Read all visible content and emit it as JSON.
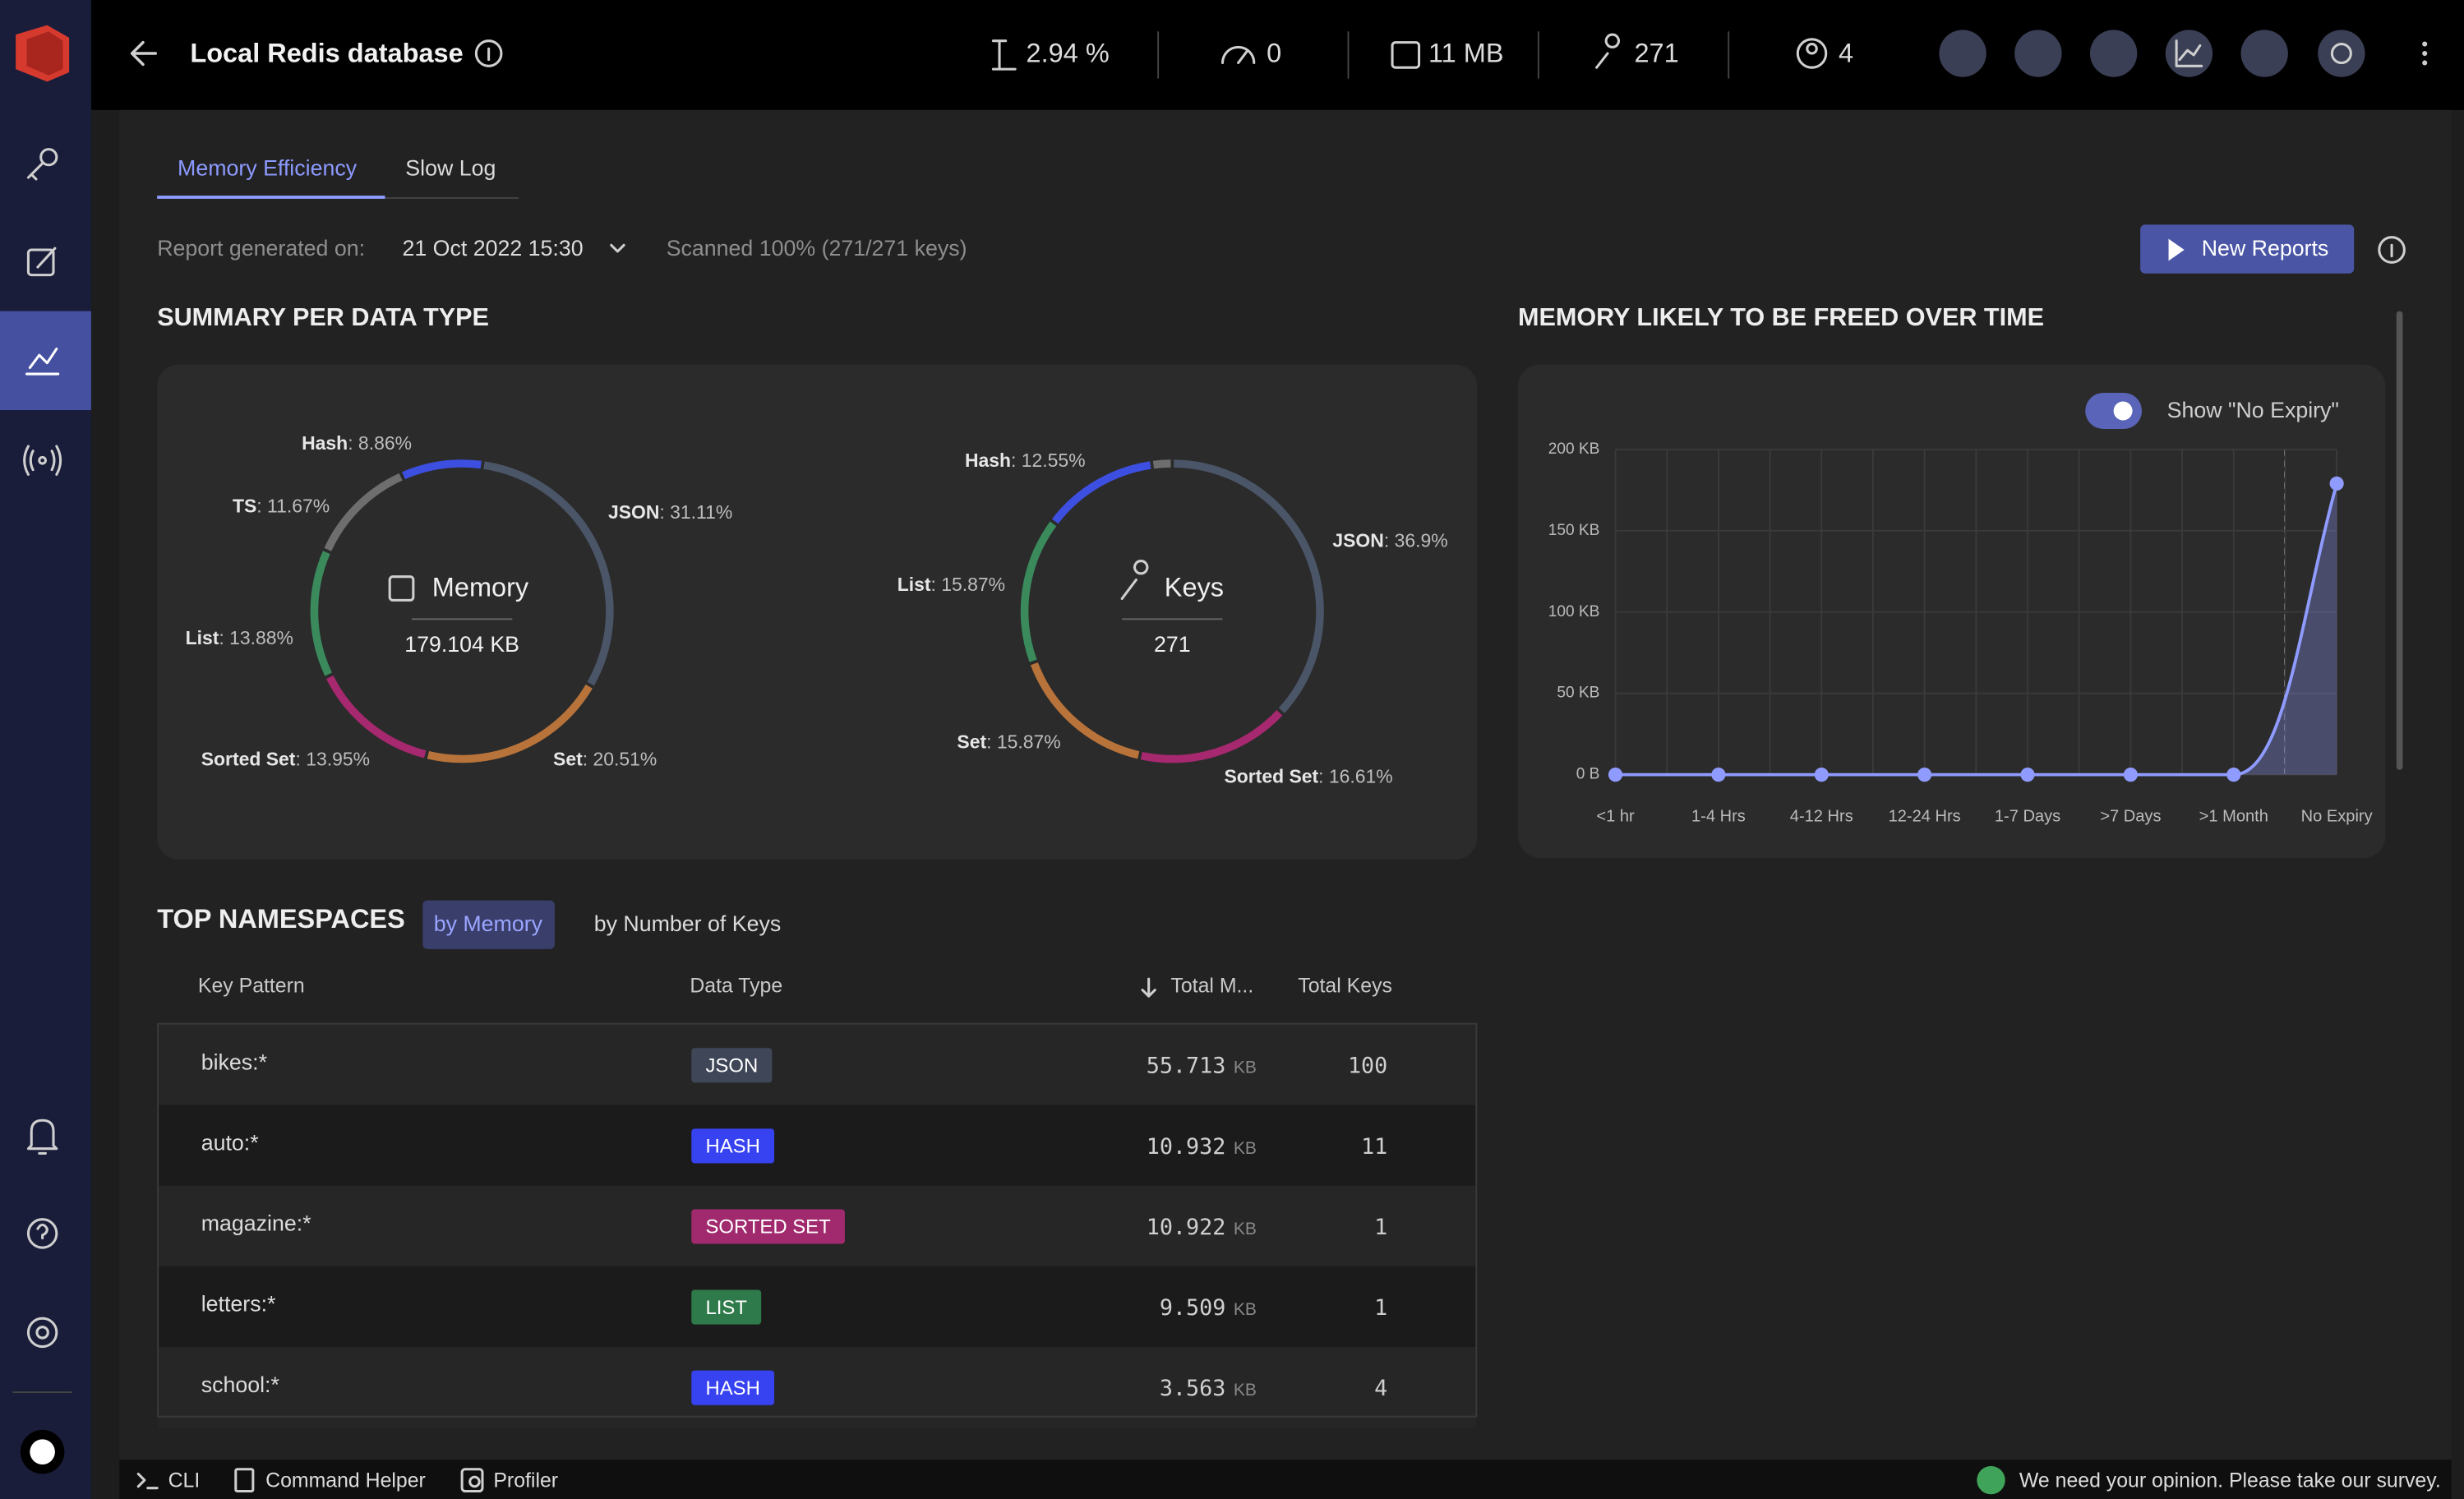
{
  "header": {
    "title": "Local Redis database",
    "cpu": "2.94 %",
    "commands": "0",
    "memory": "11 MB",
    "keys": "271",
    "clients": "4"
  },
  "tabs": [
    "Memory Efficiency",
    "Slow Log"
  ],
  "report": {
    "label": "Report generated on:",
    "date": "21 Oct 2022 15:30",
    "scanned": "Scanned 100% (271/271 keys)",
    "button": "New Reports"
  },
  "summary_title": "SUMMARY PER DATA TYPE",
  "chart_data": [
    {
      "type": "donut",
      "center_title": "Memory",
      "center_value": "179.104 KB",
      "categories": [
        "JSON",
        "Set",
        "Sorted Set",
        "List",
        "TS",
        "Hash"
      ],
      "values": [
        31.11,
        20.51,
        13.95,
        13.88,
        11.67,
        8.86
      ],
      "value_labels": [
        ": 31.11%",
        ": 20.51%",
        ": 13.95%",
        ": 13.88%",
        ": 11.67%",
        ": 8.86%"
      ],
      "colors": [
        "#4a5568",
        "#b8733a",
        "#a6286f",
        "#3a8a5c",
        "#6e6e6e",
        "#3d4fe0"
      ]
    },
    {
      "type": "donut",
      "center_title": "Keys",
      "center_value": "271",
      "categories": [
        "JSON",
        "Sorted Set",
        "Set",
        "List",
        "Hash",
        null
      ],
      "values": [
        36.9,
        16.61,
        15.87,
        15.87,
        12.55,
        2.2
      ],
      "value_labels": [
        ": 36.9%",
        ": 16.61%",
        ": 15.87%",
        ": 15.87%",
        ": 12.55%",
        null
      ],
      "colors": [
        "#4a5568",
        "#a6286f",
        "#b8733a",
        "#3a8a5c",
        "#3d4fe0",
        "#6e6e6e"
      ]
    },
    {
      "type": "line",
      "title": "MEMORY LIKELY TO BE FREED OVER TIME",
      "toggle_label": "Show \"No Expiry\"",
      "categories": [
        "<1 hr",
        "1-4 Hrs",
        "4-12 Hrs",
        "12-24 Hrs",
        "1-7 Days",
        ">7 Days",
        ">1 Month",
        "No Expiry"
      ],
      "series": [
        {
          "color": "#8f9bff",
          "values": [
            0,
            0,
            0,
            0,
            0,
            0,
            0,
            179
          ]
        }
      ],
      "ylim": [
        0,
        200
      ],
      "yticks": [
        {
          "value": 0,
          "label": "0 B"
        },
        {
          "value": 50,
          "label": "50 KB"
        },
        {
          "value": 100,
          "label": "100 KB"
        },
        {
          "value": 150,
          "label": "150 KB"
        },
        {
          "value": 200,
          "label": "200 KB"
        }
      ],
      "grid": true
    }
  ],
  "namespaces": {
    "title": "TOP NAMESPACES",
    "filters": [
      "by Memory",
      "by Number of Keys"
    ],
    "columns": [
      "Key Pattern",
      "Data Type",
      "Total M...",
      "Total Keys"
    ],
    "rows": [
      {
        "pattern": "bikes:*",
        "type": "JSON",
        "type_color": "#3e4657",
        "memory": 55.713,
        "unit": "KB",
        "keys": 100
      },
      {
        "pattern": "auto:*",
        "type": "HASH",
        "type_color": "#3742f0",
        "memory": 10.932,
        "unit": "KB",
        "keys": 11
      },
      {
        "pattern": "magazine:*",
        "type": "SORTED SET",
        "type_color": "#a02a6d",
        "memory": 10.922,
        "unit": "KB",
        "keys": 1
      },
      {
        "pattern": "letters:*",
        "type": "LIST",
        "type_color": "#2f7a4a",
        "memory": 9.509,
        "unit": "KB",
        "keys": 1
      },
      {
        "pattern": "school:*",
        "type": "HASH",
        "type_color": "#3742f0",
        "memory": 3.563,
        "unit": "KB",
        "keys": 4
      }
    ]
  },
  "footer": {
    "cli": "CLI",
    "helper": "Command Helper",
    "profiler": "Profiler",
    "survey": "We need your opinion. Please take our survey."
  }
}
